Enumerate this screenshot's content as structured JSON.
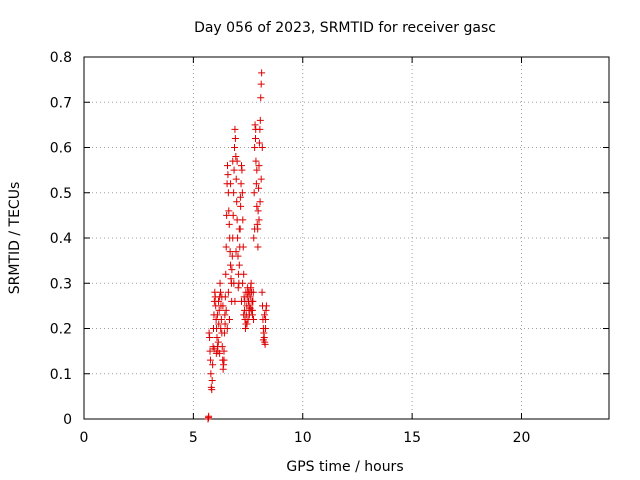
{
  "chart_data": {
    "type": "scatter",
    "title": "Day 056 of 2023, SRMTID for receiver gasc",
    "xlabel": "GPS time / hours",
    "ylabel": "SRMTID / TECUs",
    "xlim": [
      0,
      24
    ],
    "ylim": [
      0,
      0.8
    ],
    "x_ticks": [
      0,
      5,
      10,
      15,
      20
    ],
    "x_tick_labels": [
      "0",
      "5",
      "10",
      "15",
      "20"
    ],
    "y_ticks": [
      0,
      0.1,
      0.2,
      0.3,
      0.4,
      0.5,
      0.6,
      0.7,
      0.8
    ],
    "y_tick_labels": [
      "0",
      "0.1",
      "0.2",
      "0.3",
      "0.4",
      "0.5",
      "0.6",
      "0.7",
      "0.8"
    ],
    "grid": true,
    "marker": "+",
    "marker_color": "#dd0000",
    "series": [
      {
        "name": "SRMTID",
        "points": [
          [
            5.67,
            0.0
          ],
          [
            5.69,
            0.003
          ],
          [
            5.7,
            0.006
          ],
          [
            5.72,
            0.19
          ],
          [
            5.74,
            0.18
          ],
          [
            5.76,
            0.15
          ],
          [
            5.78,
            0.13
          ],
          [
            5.8,
            0.1
          ],
          [
            5.82,
            0.07
          ],
          [
            5.84,
            0.065
          ],
          [
            5.86,
            0.085
          ],
          [
            5.88,
            0.12
          ],
          [
            5.9,
            0.16
          ],
          [
            5.92,
            0.2
          ],
          [
            5.94,
            0.23
          ],
          [
            5.96,
            0.26
          ],
          [
            5.98,
            0.28
          ],
          [
            6.0,
            0.27
          ],
          [
            6.02,
            0.25
          ],
          [
            6.04,
            0.22
          ],
          [
            6.06,
            0.2
          ],
          [
            6.08,
            0.18
          ],
          [
            6.1,
            0.16
          ],
          [
            6.12,
            0.15
          ],
          [
            6.14,
            0.17
          ],
          [
            6.16,
            0.21
          ],
          [
            6.18,
            0.24
          ],
          [
            6.2,
            0.27
          ],
          [
            6.22,
            0.3
          ],
          [
            6.24,
            0.28
          ],
          [
            6.26,
            0.25
          ],
          [
            6.28,
            0.22
          ],
          [
            6.3,
            0.19
          ],
          [
            6.32,
            0.16
          ],
          [
            6.34,
            0.13
          ],
          [
            6.36,
            0.11
          ],
          [
            6.38,
            0.12
          ],
          [
            6.4,
            0.15
          ],
          [
            6.42,
            0.19
          ],
          [
            6.44,
            0.23
          ],
          [
            6.46,
            0.27
          ],
          [
            6.48,
            0.32
          ],
          [
            6.5,
            0.38
          ],
          [
            6.52,
            0.45
          ],
          [
            6.54,
            0.52
          ],
          [
            6.56,
            0.56
          ],
          [
            6.58,
            0.54
          ],
          [
            6.6,
            0.5
          ],
          [
            6.62,
            0.46
          ],
          [
            6.64,
            0.43
          ],
          [
            6.66,
            0.4
          ],
          [
            6.68,
            0.37
          ],
          [
            6.7,
            0.34
          ],
          [
            6.72,
            0.31
          ],
          [
            6.74,
            0.3
          ],
          [
            6.76,
            0.33
          ],
          [
            6.78,
            0.36
          ],
          [
            6.8,
            0.4
          ],
          [
            6.82,
            0.45
          ],
          [
            6.84,
            0.5
          ],
          [
            6.86,
            0.55
          ],
          [
            6.88,
            0.6
          ],
          [
            6.9,
            0.64
          ],
          [
            6.92,
            0.62
          ],
          [
            6.94,
            0.58
          ],
          [
            6.96,
            0.53
          ],
          [
            6.98,
            0.48
          ],
          [
            7.0,
            0.44
          ],
          [
            7.02,
            0.4
          ],
          [
            7.04,
            0.36
          ],
          [
            7.06,
            0.32
          ],
          [
            7.08,
            0.3
          ],
          [
            7.1,
            0.34
          ],
          [
            7.12,
            0.38
          ],
          [
            7.14,
            0.42
          ],
          [
            7.16,
            0.47
          ],
          [
            7.18,
            0.52
          ],
          [
            7.2,
            0.56
          ],
          [
            7.22,
            0.55
          ],
          [
            7.24,
            0.5
          ],
          [
            7.26,
            0.44
          ],
          [
            7.28,
            0.38
          ],
          [
            7.3,
            0.32
          ],
          [
            7.32,
            0.27
          ],
          [
            7.34,
            0.24
          ],
          [
            7.36,
            0.22
          ],
          [
            7.38,
            0.2
          ],
          [
            7.4,
            0.21
          ],
          [
            7.42,
            0.23
          ],
          [
            7.44,
            0.25
          ],
          [
            7.46,
            0.27
          ],
          [
            7.48,
            0.29
          ],
          [
            7.5,
            0.28
          ],
          [
            7.52,
            0.26
          ],
          [
            7.54,
            0.24
          ],
          [
            7.56,
            0.23
          ],
          [
            7.58,
            0.25
          ],
          [
            7.6,
            0.27
          ],
          [
            7.62,
            0.29
          ],
          [
            7.64,
            0.3
          ],
          [
            7.66,
            0.28
          ],
          [
            7.68,
            0.26
          ],
          [
            7.7,
            0.24
          ],
          [
            7.72,
            0.26
          ],
          [
            7.74,
            0.28
          ],
          [
            7.76,
            0.4
          ],
          [
            7.78,
            0.5
          ],
          [
            7.8,
            0.6
          ],
          [
            7.82,
            0.65
          ],
          [
            7.84,
            0.62
          ],
          [
            7.86,
            0.57
          ],
          [
            7.88,
            0.52
          ],
          [
            7.9,
            0.47
          ],
          [
            7.92,
            0.43
          ],
          [
            7.94,
            0.42
          ],
          [
            7.96,
            0.46
          ],
          [
            7.98,
            0.51
          ],
          [
            8.0,
            0.56
          ],
          [
            8.02,
            0.61
          ],
          [
            8.04,
            0.64
          ],
          [
            8.06,
            0.66
          ],
          [
            8.08,
            0.71
          ],
          [
            8.1,
            0.74
          ],
          [
            8.12,
            0.765
          ],
          [
            8.14,
            0.28
          ],
          [
            8.16,
            0.25
          ],
          [
            8.18,
            0.22
          ],
          [
            8.2,
            0.2
          ],
          [
            8.22,
            0.19
          ],
          [
            8.24,
            0.18
          ],
          [
            8.26,
            0.17
          ],
          [
            8.28,
            0.165
          ],
          [
            8.3,
            0.2
          ],
          [
            8.32,
            0.24
          ],
          [
            8.34,
            0.25
          ],
          [
            5.95,
            0.155
          ],
          [
            6.05,
            0.145
          ],
          [
            6.15,
            0.26
          ],
          [
            6.25,
            0.2
          ],
          [
            6.35,
            0.25
          ],
          [
            6.45,
            0.21
          ],
          [
            6.55,
            0.2
          ],
          [
            6.65,
            0.22
          ],
          [
            6.75,
            0.26
          ],
          [
            6.85,
            0.3
          ],
          [
            6.95,
            0.37
          ],
          [
            7.05,
            0.29
          ],
          [
            7.15,
            0.49
          ],
          [
            7.25,
            0.3
          ],
          [
            7.35,
            0.26
          ],
          [
            7.45,
            0.21
          ],
          [
            7.55,
            0.28
          ],
          [
            7.65,
            0.24
          ],
          [
            7.75,
            0.22
          ],
          [
            7.85,
            0.64
          ],
          [
            7.95,
            0.38
          ],
          [
            8.05,
            0.48
          ],
          [
            8.15,
            0.6
          ],
          [
            8.25,
            0.23
          ],
          [
            6.1,
            0.23
          ],
          [
            6.2,
            0.145
          ],
          [
            6.3,
            0.27
          ],
          [
            6.4,
            0.13
          ],
          [
            6.5,
            0.24
          ],
          [
            6.6,
            0.28
          ],
          [
            6.7,
            0.52
          ],
          [
            6.8,
            0.57
          ],
          [
            6.9,
            0.26
          ],
          [
            7.0,
            0.57
          ],
          [
            7.1,
            0.42
          ],
          [
            7.2,
            0.26
          ],
          [
            7.3,
            0.23
          ],
          [
            7.4,
            0.28
          ],
          [
            7.5,
            0.22
          ],
          [
            7.6,
            0.245
          ],
          [
            7.7,
            0.23
          ],
          [
            7.8,
            0.42
          ],
          [
            7.9,
            0.55
          ],
          [
            8.0,
            0.44
          ],
          [
            8.1,
            0.53
          ],
          [
            8.2,
            0.175
          ],
          [
            8.3,
            0.22
          ]
        ]
      }
    ]
  }
}
